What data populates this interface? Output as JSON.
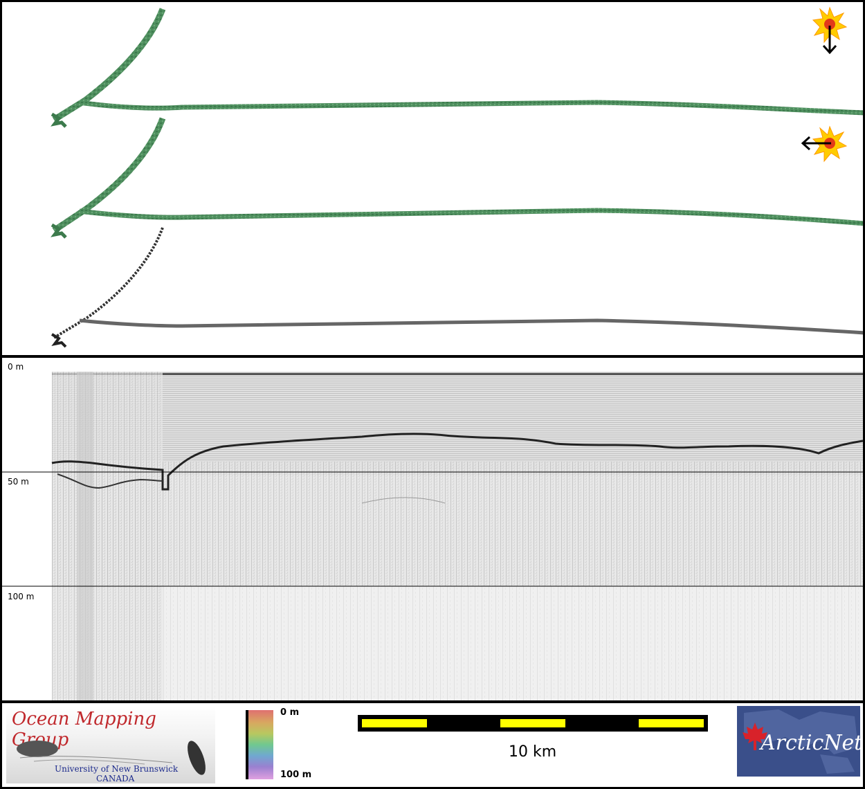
{
  "profile": {
    "depth_labels": [
      "0 m",
      "50 m",
      "100 m"
    ]
  },
  "footer": {
    "ocean_mapping": {
      "title": "Ocean Mapping Group",
      "university": "University of New Brunswick",
      "country": "CANADA"
    },
    "colorbar": {
      "top_label": "0 m",
      "bottom_label": "100 m"
    },
    "scale_bar": {
      "label": "10 km"
    },
    "arcticnet": {
      "logo_text": "ArcticNet"
    }
  },
  "colors": {
    "track_green": "#4f8f5f",
    "track_gray": "#555555",
    "scale_yellow": "#ffff00",
    "sun_yellow": "#ffcc00",
    "ocean_title_red": "#c0282c",
    "arctic_bg": "#3a4f8a"
  },
  "icons": [
    "sun-arrow-down-icon",
    "sun-arrow-left-icon",
    "maple-leaf-icon"
  ]
}
